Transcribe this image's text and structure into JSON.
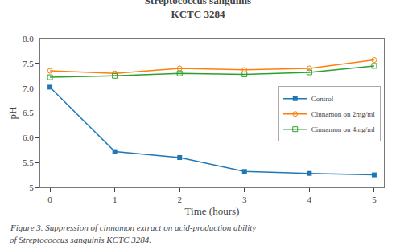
{
  "chart_data": {
    "type": "line",
    "title": "Streptococcus sanguinis",
    "subtitle": "KCTC 3284",
    "x_label": "Time (hours)",
    "y_label": "pH",
    "x": [
      0,
      1,
      2,
      3,
      4,
      5
    ],
    "series": [
      {
        "name": "Control",
        "marker": "square",
        "values": [
          7.02,
          5.72,
          5.6,
          5.32,
          5.28,
          5.25
        ]
      },
      {
        "name": "Cinnamon on 2mg/ml",
        "marker": "circle-open",
        "values": [
          7.35,
          7.3,
          7.4,
          7.37,
          7.4,
          7.57
        ]
      },
      {
        "name": "Cinnamon on 4mg/ml",
        "marker": "square-open",
        "values": [
          7.22,
          7.25,
          7.3,
          7.28,
          7.32,
          7.45
        ]
      }
    ],
    "xlim": [
      -0.15,
      5.15
    ],
    "xticks": [
      0,
      1,
      2,
      3,
      4,
      5
    ],
    "ylim": [
      5.0,
      8.0
    ],
    "yticks": [
      5.0,
      {
        "value": 5.5,
        "label": "5.5"
      },
      {
        "value": 6.0,
        "label": "6.0"
      },
      {
        "value": 6.5,
        "label": "6.5"
      },
      {
        "value": 7.0,
        "label": "7.0"
      },
      {
        "value": 7.5,
        "label": "7.5"
      },
      {
        "value": 8.0,
        "label": "8.0"
      }
    ],
    "grid": false,
    "legend": "upper right",
    "annotations": [
      "Figure 3. Suppression of cinnamon extract on acid-production ability",
      "of Streptococcus sanguinis KCTC 3284."
    ]
  }
}
